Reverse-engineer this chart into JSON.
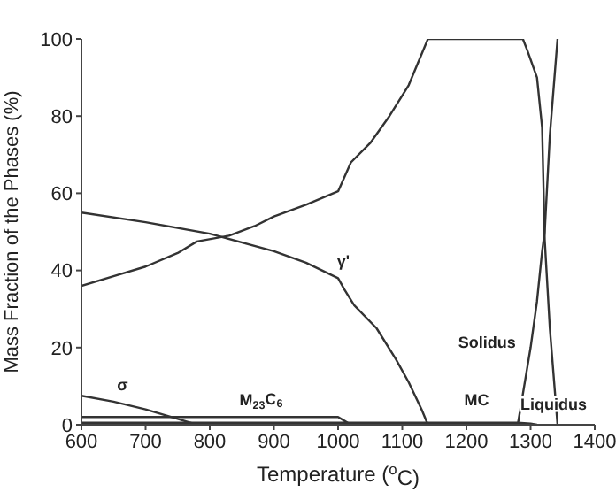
{
  "chart_data": {
    "type": "line",
    "xlabel": "Temperature ($^{o}$C)",
    "ylabel": "Mass Fraction of the Phases (%)",
    "xlim": [
      600,
      1400
    ],
    "xticks": [
      600,
      700,
      800,
      900,
      1000,
      1100,
      1200,
      1300,
      1400
    ],
    "ylim": [
      0,
      100
    ],
    "yticks": [
      0,
      20,
      40,
      60,
      80,
      100
    ],
    "marker": "none",
    "line_style": "solid",
    "series": [
      {
        "color": "#333333",
        "x": [
          600,
          650,
          700,
          750,
          780,
          830,
          870,
          900,
          950,
          1000,
          1020,
          1050,
          1080,
          1110,
          1140,
          1200,
          1288,
          1295,
          1310,
          1318,
          1322,
          1330,
          1342
        ],
        "values": [
          36,
          38.5,
          41,
          44.5,
          47.5,
          49,
          51.5,
          54,
          57,
          60.5,
          68,
          73,
          80,
          88,
          100,
          100,
          100,
          97,
          90,
          77,
          48,
          25,
          0
        ]
      },
      {
        "color": "#333333",
        "x": [
          600,
          700,
          800,
          900,
          950,
          1000,
          1010,
          1025,
          1060,
          1090,
          1110,
          1130,
          1140
        ],
        "values": [
          55,
          52.5,
          49.5,
          45,
          42,
          38,
          35,
          31,
          25,
          17,
          11,
          4,
          0
        ]
      },
      {
        "color": "#333333",
        "x": [
          600,
          650,
          700,
          750,
          780
        ],
        "values": [
          7.5,
          6,
          4,
          1.5,
          0
        ]
      },
      {
        "color": "#333333",
        "x": [
          600,
          1000,
          1010,
          1020
        ],
        "values": [
          2,
          2,
          1,
          0
        ]
      },
      {
        "color": "#333333",
        "x": [
          600,
          1280,
          1300,
          1310
        ],
        "values": [
          0.5,
          0.5,
          0.3,
          0
        ]
      },
      {
        "color": "#333333",
        "x": [
          1280,
          1285,
          1290,
          1300,
          1310,
          1318,
          1322,
          1330,
          1342
        ],
        "values": [
          0,
          5,
          10,
          20,
          32,
          45,
          50,
          75,
          100
        ]
      }
    ],
    "annotations": [
      "σ",
      "M$_{23}$C$_{6}$",
      "γ'",
      "MC",
      "Solidus",
      "Liquidus"
    ]
  }
}
